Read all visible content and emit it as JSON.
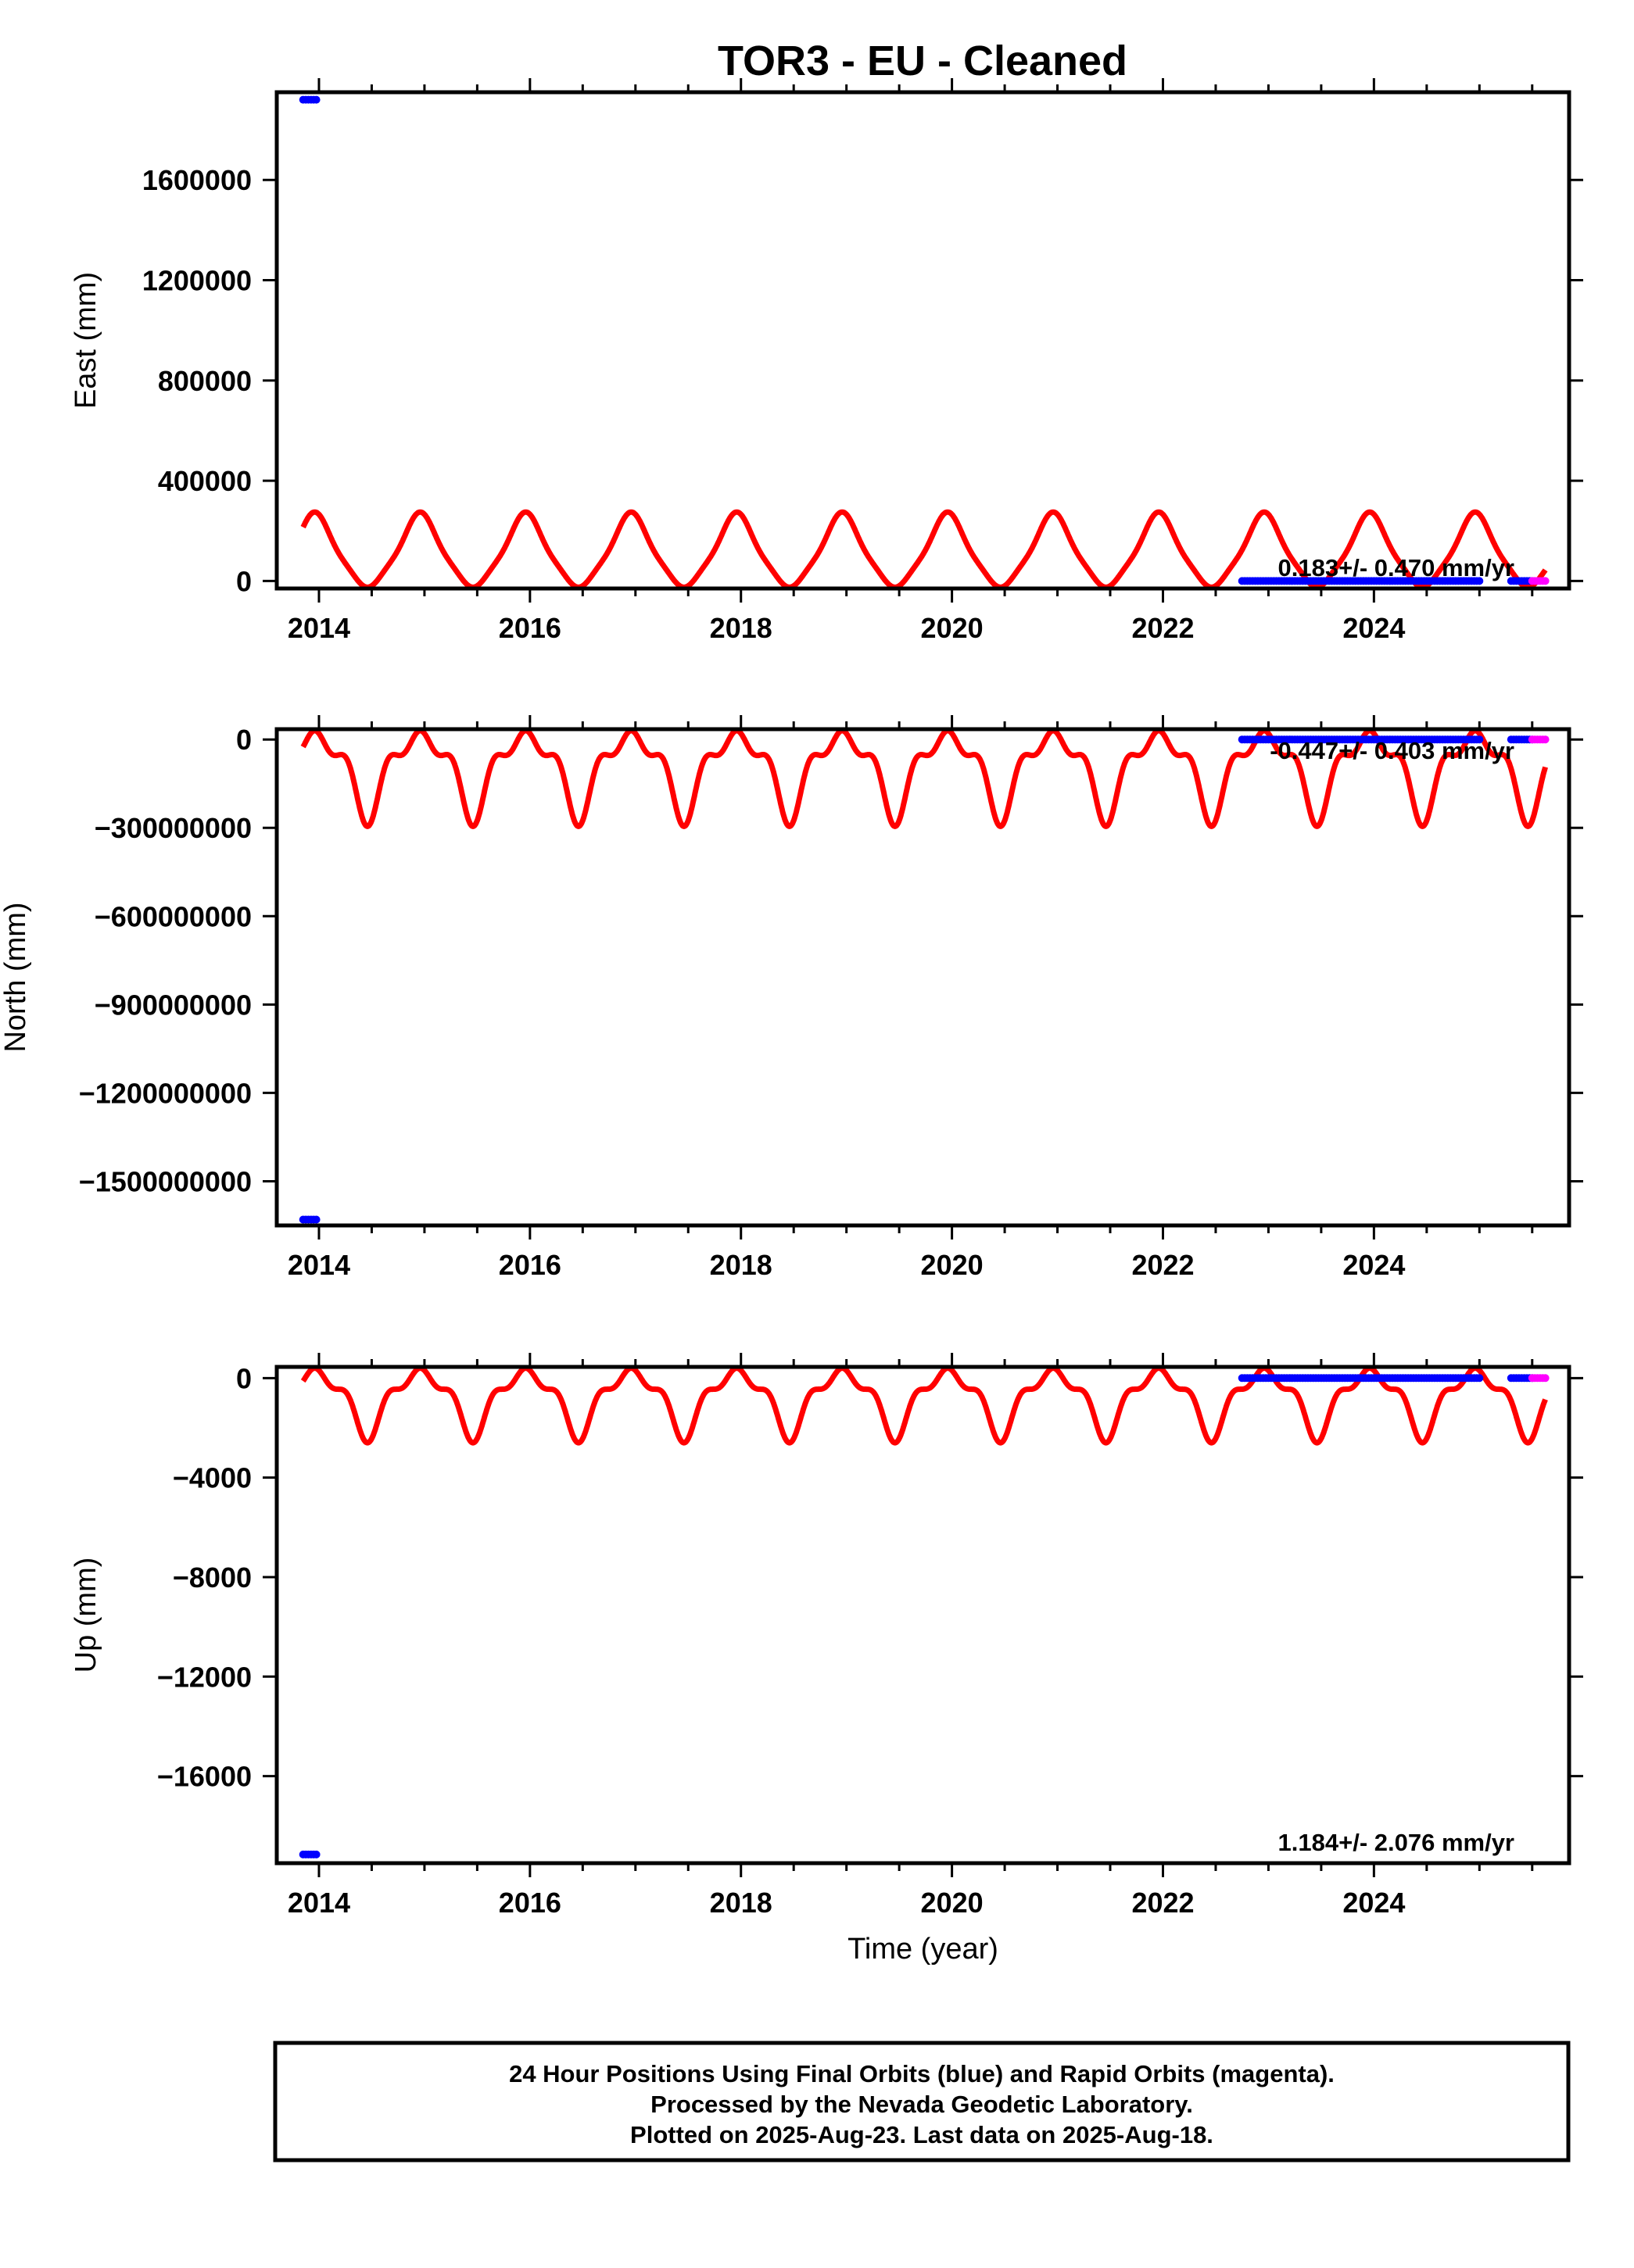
{
  "title": "TOR3  - EU - Cleaned",
  "footer": {
    "line1": "24 Hour Positions Using Final Orbits (blue) and Rapid Orbits (magenta).",
    "line2": "Processed by the Nevada Geodetic Laboratory.",
    "line3": "Plotted on 2025-Aug-23. Last data on 2025-Aug-18."
  },
  "colors": {
    "final": "#0000ff",
    "rapid": "#ff00ff",
    "model": "#ff0000",
    "frame": "#000000"
  },
  "chart_data": [
    {
      "type": "scatter",
      "ylabel": "East (mm)",
      "xlabel": "",
      "xlim": [
        2013.6,
        2025.85
      ],
      "ylim": [
        -30000,
        1950000
      ],
      "xticks": [
        2014,
        2016,
        2018,
        2020,
        2022,
        2024
      ],
      "yticks": [
        0,
        400000,
        800000,
        1200000,
        1600000
      ],
      "ytick_labels": [
        "0",
        "400000",
        "800000",
        "1200000",
        "1600000"
      ],
      "rate_label": "0.183+/- 0.470 mm/yr",
      "rate_position": "bottom-right",
      "final_segments": [
        {
          "x": [
            2013.85,
            2013.98
          ],
          "y": 1920000
        },
        {
          "x": [
            2022.75,
            2025.0
          ],
          "y": 0
        },
        {
          "x": [
            2025.3,
            2025.5
          ],
          "y": 0
        }
      ],
      "rapid_segments": [
        {
          "x": [
            2025.5,
            2025.63
          ],
          "y": 0
        }
      ],
      "model": {
        "x_start": 2013.85,
        "x_end": 2025.63,
        "max": 275000,
        "min": -25000,
        "secondary_peak": 45000
      }
    },
    {
      "type": "scatter",
      "ylabel": "North (mm)",
      "xlabel": "",
      "xlim": [
        2013.6,
        2025.85
      ],
      "ylim": [
        -1650000000,
        35000000
      ],
      "xticks": [
        2014,
        2016,
        2018,
        2020,
        2022,
        2024
      ],
      "yticks": [
        0,
        -300000000,
        -600000000,
        -900000000,
        -1200000000,
        -1500000000
      ],
      "ytick_labels": [
        "0",
        "−300000000",
        "−600000000",
        "−900000000",
        "−1200000000",
        "−1500000000"
      ],
      "rate_label": "-0.447+/- 0.403 mm/yr",
      "rate_position": "top-right",
      "final_segments": [
        {
          "x": [
            2013.85,
            2013.98
          ],
          "y": -1630000000
        },
        {
          "x": [
            2022.75,
            2025.0
          ],
          "y": 0
        },
        {
          "x": [
            2025.3,
            2025.5
          ],
          "y": 0
        }
      ],
      "rapid_segments": [
        {
          "x": [
            2025.5,
            2025.63
          ],
          "y": 0
        }
      ],
      "model": {
        "x_start": 2013.85,
        "x_end": 2025.63,
        "max": 30000000,
        "min": -295000000,
        "secondary_peak": -45000000
      }
    },
    {
      "type": "scatter",
      "ylabel": "Up (mm)",
      "xlabel": "Time (year)",
      "xlim": [
        2013.6,
        2025.85
      ],
      "ylim": [
        -19500,
        450
      ],
      "xticks": [
        2014,
        2016,
        2018,
        2020,
        2022,
        2024
      ],
      "yticks": [
        0,
        -4000,
        -8000,
        -12000,
        -16000
      ],
      "ytick_labels": [
        "0",
        "−4000",
        "−8000",
        "−12000",
        "−16000"
      ],
      "rate_label": "1.184+/- 2.076 mm/yr",
      "rate_position": "bottom-right",
      "final_segments": [
        {
          "x": [
            2013.85,
            2013.98
          ],
          "y": -19150
        },
        {
          "x": [
            2022.75,
            2025.0
          ],
          "y": 0
        },
        {
          "x": [
            2025.3,
            2025.5
          ],
          "y": 0
        }
      ],
      "rapid_segments": [
        {
          "x": [
            2025.5,
            2025.63
          ],
          "y": 0
        }
      ],
      "model": {
        "x_start": 2013.85,
        "x_end": 2025.63,
        "max": 400,
        "min": -2600,
        "secondary_peak": -450
      }
    }
  ]
}
